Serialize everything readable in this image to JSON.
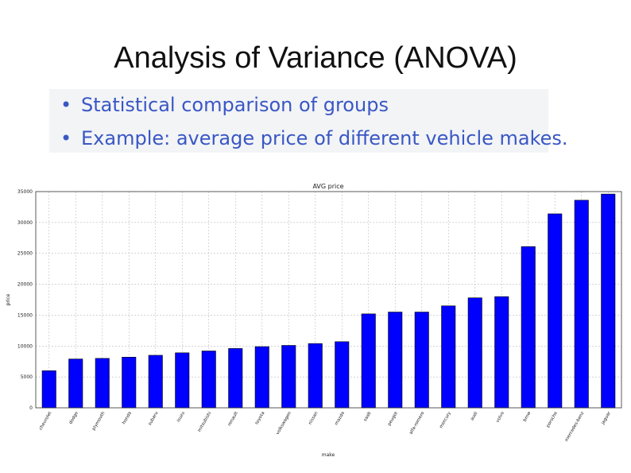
{
  "slide": {
    "title": "Analysis of Variance (ANOVA)",
    "bullets": [
      "Statistical comparison of groups",
      "Example: average price of different vehicle makes."
    ]
  },
  "chart_data": {
    "type": "bar",
    "title": "AVG price",
    "xlabel": "make",
    "ylabel": "price",
    "ylim": [
      0,
      35000
    ],
    "yticks": [
      0,
      5000,
      10000,
      15000,
      20000,
      25000,
      30000,
      35000
    ],
    "grid": true,
    "bar_color": "#0000ff",
    "categories": [
      "chevrolet",
      "dodge",
      "plymouth",
      "honda",
      "subaru",
      "isuzu",
      "mitsubishi",
      "renault",
      "toyota",
      "volkswagen",
      "nissan",
      "mazda",
      "saab",
      "peugot",
      "alfa-romero",
      "mercury",
      "audi",
      "volvo",
      "bmw",
      "porsche",
      "mercedes-benz",
      "jaguar"
    ],
    "values": [
      6000,
      7900,
      8000,
      8200,
      8500,
      8900,
      9200,
      9600,
      9900,
      10100,
      10400,
      10700,
      15200,
      15500,
      15500,
      16500,
      17800,
      18000,
      26100,
      31400,
      33600,
      34600
    ]
  }
}
